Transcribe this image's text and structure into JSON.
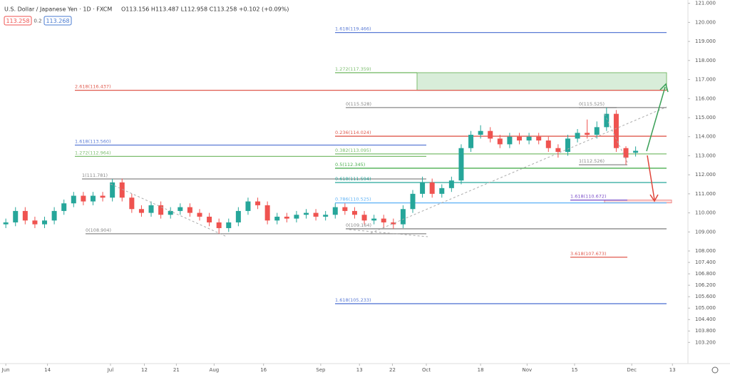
{
  "header": {
    "title": "U.S. Dollar / Japanese Yen · 1D · FXCM",
    "ohlc": "O113.156 H113.487 L112.958 C113.258 +0.102 (+0.09%)",
    "sell": "113.258",
    "spread": "0.2",
    "buy": "113.268"
  },
  "chart_data": {
    "type": "candlestick",
    "up_color": "#26a69a",
    "down_color": "#ef5350",
    "open": [
      109.4,
      109.5,
      110.1,
      109.6,
      109.4,
      109.6,
      110.1,
      110.5,
      110.9,
      110.6,
      110.9,
      110.8,
      111.6,
      110.8,
      110.2,
      110.0,
      110.4,
      109.9,
      110.1,
      110.3,
      110.0,
      109.8,
      109.5,
      109.2,
      109.5,
      110.1,
      110.6,
      110.4,
      109.6,
      109.8,
      109.7,
      109.9,
      110.0,
      109.8,
      109.9,
      110.3,
      110.1,
      109.9,
      109.6,
      109.7,
      109.5,
      109.4,
      110.2,
      111.0,
      111.6,
      111.0,
      111.3,
      111.7,
      113.4,
      114.1,
      114.3,
      113.9,
      113.6,
      114.0,
      113.8,
      114.0,
      113.8,
      113.4,
      113.2,
      113.9,
      114.2,
      114.1,
      114.5,
      115.2,
      113.4,
      113.156
    ],
    "high": [
      109.7,
      110.3,
      110.3,
      109.8,
      109.8,
      110.3,
      110.7,
      111.1,
      111.1,
      111.1,
      111.1,
      111.78,
      111.8,
      111.0,
      110.4,
      110.6,
      110.6,
      110.3,
      110.5,
      110.5,
      110.2,
      110.0,
      109.7,
      109.7,
      110.3,
      110.8,
      110.8,
      110.6,
      110.0,
      110.0,
      110.1,
      110.2,
      110.2,
      110.1,
      110.5,
      110.5,
      110.3,
      110.1,
      109.9,
      109.9,
      109.7,
      110.4,
      111.2,
      111.9,
      111.8,
      111.5,
      111.9,
      113.6,
      114.3,
      114.6,
      114.5,
      114.1,
      114.2,
      114.2,
      114.2,
      114.2,
      114.0,
      113.6,
      114.1,
      114.4,
      114.9,
      114.8,
      115.525,
      115.4,
      113.5,
      113.487
    ],
    "low": [
      109.2,
      109.3,
      109.4,
      109.2,
      109.2,
      109.4,
      109.9,
      110.3,
      110.4,
      110.4,
      110.6,
      110.6,
      110.6,
      110.0,
      109.8,
      109.8,
      109.7,
      109.7,
      109.9,
      109.8,
      109.6,
      109.3,
      108.904,
      109.0,
      109.3,
      109.9,
      110.2,
      109.4,
      109.4,
      109.5,
      109.5,
      109.7,
      109.6,
      109.6,
      109.7,
      109.9,
      109.7,
      109.4,
      109.4,
      109.2,
      109.164,
      109.2,
      110.0,
      110.8,
      110.8,
      110.8,
      111.1,
      111.5,
      113.2,
      113.9,
      113.7,
      113.4,
      113.4,
      113.6,
      113.6,
      113.6,
      113.2,
      112.9,
      113.0,
      113.7,
      113.9,
      113.9,
      114.3,
      113.2,
      112.526,
      112.958
    ],
    "close": [
      109.5,
      110.1,
      109.6,
      109.4,
      109.6,
      110.1,
      110.5,
      110.9,
      110.6,
      110.9,
      110.8,
      111.6,
      110.8,
      110.2,
      110.0,
      110.4,
      109.9,
      110.1,
      110.3,
      110.0,
      109.8,
      109.5,
      109.2,
      109.5,
      110.1,
      110.6,
      110.4,
      109.6,
      109.8,
      109.7,
      109.9,
      110.0,
      109.8,
      109.9,
      110.3,
      110.1,
      109.9,
      109.6,
      109.7,
      109.5,
      109.4,
      110.2,
      111.0,
      111.6,
      111.0,
      111.3,
      111.7,
      113.4,
      114.1,
      114.3,
      113.9,
      113.6,
      114.0,
      113.8,
      114.0,
      113.8,
      113.4,
      113.2,
      113.9,
      114.2,
      114.1,
      114.5,
      115.2,
      113.4,
      112.9,
      113.258
    ],
    "xlim": [
      -0.6,
      70.4
    ],
    "xticks": [
      {
        "value": 0,
        "label": "Jun"
      },
      {
        "value": 4.3,
        "label": "14"
      },
      {
        "value": 10.8,
        "label": "Jul"
      },
      {
        "value": 14.3,
        "label": "12"
      },
      {
        "value": 17.6,
        "label": "21"
      },
      {
        "value": 21.5,
        "label": "Aug"
      },
      {
        "value": 26.6,
        "label": "16"
      },
      {
        "value": 32.5,
        "label": "Sep"
      },
      {
        "value": 36.5,
        "label": "13"
      },
      {
        "value": 39.9,
        "label": "22"
      },
      {
        "value": 43.4,
        "label": "Oct"
      },
      {
        "value": 49,
        "label": "18"
      },
      {
        "value": 53.8,
        "label": "Nov"
      },
      {
        "value": 58.7,
        "label": "15"
      },
      {
        "value": 64.6,
        "label": "Dec"
      },
      {
        "value": 68.8,
        "label": "13"
      }
    ],
    "ylim": [
      102.2,
      121.1
    ],
    "yticks": [
      {
        "value": 121,
        "label": "121.000"
      },
      {
        "value": 120,
        "label": "120.000"
      },
      {
        "value": 119,
        "label": "119.000"
      },
      {
        "value": 118,
        "label": "118.000"
      },
      {
        "value": 117,
        "label": "117.000"
      },
      {
        "value": 116,
        "label": "116.000"
      },
      {
        "value": 115,
        "label": "115.000"
      },
      {
        "value": 114,
        "label": "114.000"
      },
      {
        "value": 113,
        "label": "113.000"
      },
      {
        "value": 112,
        "label": "112.000"
      },
      {
        "value": 111,
        "label": "111.000"
      },
      {
        "value": 110,
        "label": "110.000"
      },
      {
        "value": 109,
        "label": "109.000"
      },
      {
        "value": 108,
        "label": "108.000"
      },
      {
        "value": 107.4,
        "label": "107.400"
      },
      {
        "value": 106.8,
        "label": "106.800"
      },
      {
        "value": 106.2,
        "label": "106.200"
      },
      {
        "value": 105.6,
        "label": "105.600"
      },
      {
        "value": 105,
        "label": "105.000"
      },
      {
        "value": 104.4,
        "label": "104.400"
      },
      {
        "value": 103.8,
        "label": "103.800"
      },
      {
        "value": 103.2,
        "label": "103.200"
      }
    ],
    "levels": [
      {
        "label": "1.618(119.466)",
        "price": 119.466,
        "color": "#5b7bd5"
      },
      {
        "label": "1.272(117.359)",
        "price": 117.359,
        "color": "#7cbd6f"
      },
      {
        "label": "2.618(116.437)",
        "price": 116.437,
        "color": "#e05a4e"
      },
      {
        "label": "0(115.528)",
        "price": 115.528,
        "color": "#888888"
      },
      {
        "label": "0(115.525)",
        "price": 115.525,
        "color": "#888888"
      },
      {
        "label": "0.236(114.024)",
        "price": 114.024,
        "color": "#e05a4e"
      },
      {
        "label": "1.618(113.560)",
        "price": 113.56,
        "color": "#5b7bd5"
      },
      {
        "label": "0.382(113.095)",
        "price": 113.095,
        "color": "#7cbd6f"
      },
      {
        "label": "1.272(112.964)",
        "price": 112.964,
        "color": "#7cbd6f"
      },
      {
        "label": "0.5(112.345)",
        "price": 112.345,
        "color": "#4caf50"
      },
      {
        "label": "1(111.781)",
        "price": 111.781,
        "color": "#888888"
      },
      {
        "label": "0.618(111.594)",
        "price": 111.594,
        "color": "#26a69a"
      },
      {
        "label": "0.786(110.525)",
        "price": 110.525,
        "color": "#64b5f6"
      },
      {
        "label": "1.618(110.672)",
        "price": 110.672,
        "color": "#7b4fc9"
      },
      {
        "label": "0(109.164)",
        "price": 109.164,
        "color": "#888888"
      },
      {
        "label": "0(108.904)",
        "price": 108.904,
        "color": "#888888"
      },
      {
        "label": "1(112.526)",
        "price": 112.526,
        "color": "#888888"
      },
      {
        "label": "3.618(107.673)",
        "price": 107.673,
        "color": "#e05a4e"
      },
      {
        "label": "1.618(105.233)",
        "price": 105.233,
        "color": "#5b7bd5"
      }
    ]
  }
}
